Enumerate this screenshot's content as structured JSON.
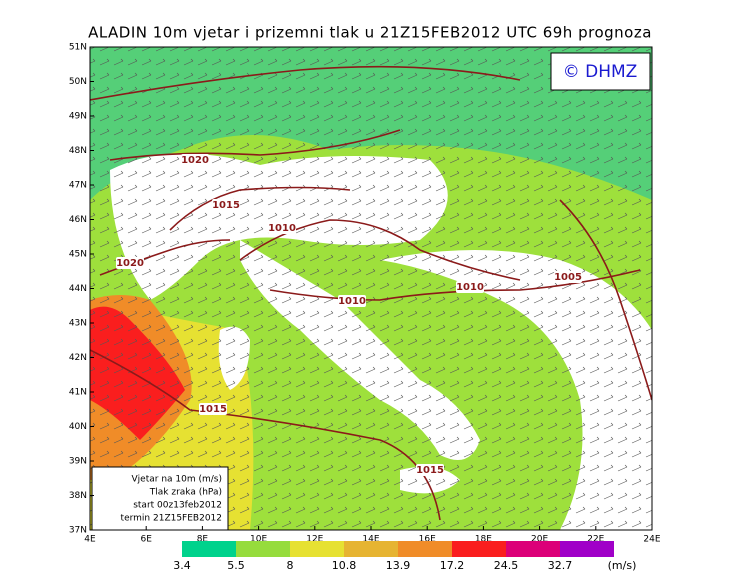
{
  "header": {
    "title": "ALADIN 10m vjetar i prizemni tlak u 21Z15FEB2012 UTC 69h prognoza"
  },
  "logo": "© DHMZ",
  "latitude_labels": [
    "51N",
    "50N",
    "49N",
    "48N",
    "47N",
    "46N",
    "45N",
    "44N",
    "43N",
    "42N",
    "41N",
    "40N",
    "39N",
    "38N",
    "37N"
  ],
  "longitude_labels": [
    "4E",
    "6E",
    "8E",
    "10E",
    "12E",
    "14E",
    "16E",
    "18E",
    "20E",
    "22E",
    "24E"
  ],
  "isobar_labels": [
    1020,
    1015,
    1010,
    1020,
    1010,
    1010,
    1005,
    1015,
    1015
  ],
  "info_box": [
    "Vjetar na 10m (m/s)",
    "Tlak zraka (hPa)",
    "start 00z13feb2012",
    "termin 21Z15FEB2012"
  ],
  "color_scale": {
    "labels": [
      3.4,
      5.5,
      8,
      10.8,
      13.9,
      17.2,
      24.5,
      32.7
    ],
    "colors": [
      "#00d28c",
      "#96dc3c",
      "#e6e132",
      "#e6b432",
      "#f08c28",
      "#fa1e1e",
      "#dc0078",
      "#a000c8"
    ],
    "unit": "(m/s)"
  }
}
